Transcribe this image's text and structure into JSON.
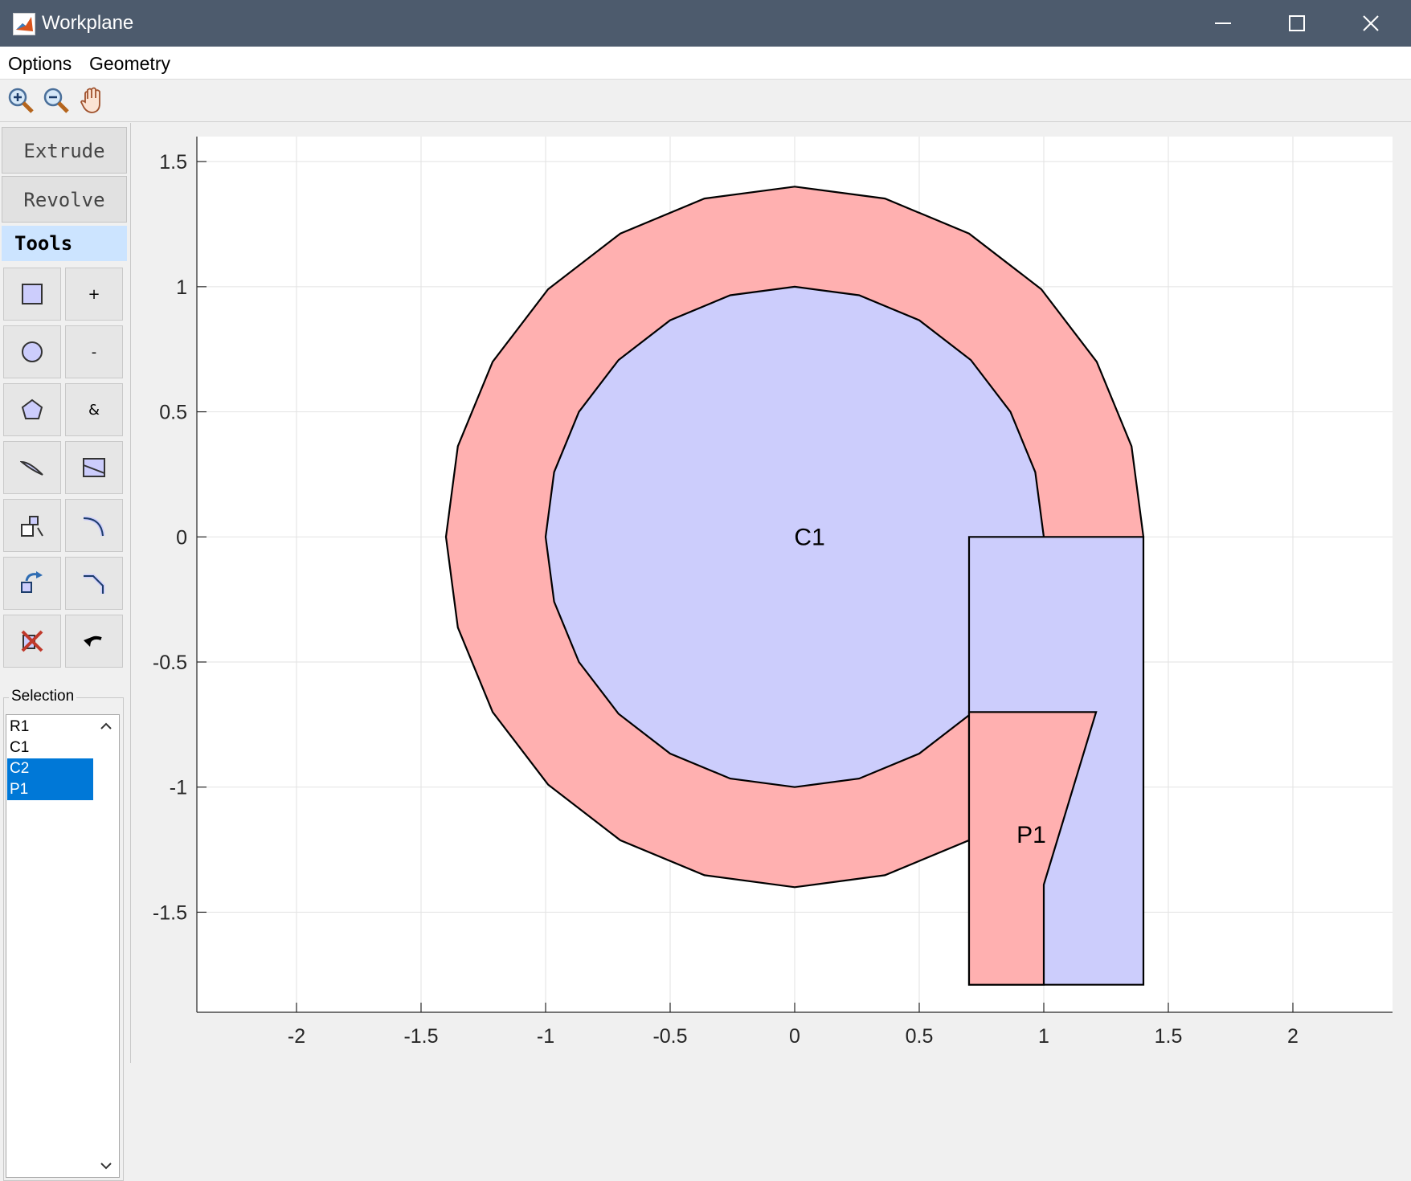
{
  "window": {
    "title": "Workplane"
  },
  "menu": {
    "items": [
      "Options",
      "Geometry"
    ]
  },
  "toolbar": {
    "icons": [
      "zoom-in-icon",
      "zoom-out-icon",
      "pan-hand-icon"
    ]
  },
  "sidebar": {
    "extrude_label": "Extrude",
    "revolve_label": "Revolve",
    "tools_label": "Tools",
    "tool_buttons": {
      "union": "+",
      "difference": "-",
      "intersection": "&"
    },
    "selection": {
      "label": "Selection",
      "items": [
        {
          "label": "R1",
          "selected": false
        },
        {
          "label": "C1",
          "selected": false
        },
        {
          "label": "C2",
          "selected": true
        },
        {
          "label": "P1",
          "selected": true
        }
      ]
    }
  },
  "chart_data": {
    "type": "geometry-plot",
    "xlim": [
      -2.4,
      2.4
    ],
    "ylim": [
      -1.9,
      1.6
    ],
    "x_ticks": [
      -2,
      -1.5,
      -1,
      -0.5,
      0,
      0.5,
      1,
      1.5,
      2
    ],
    "y_ticks": [
      1.5,
      1,
      0.5,
      0,
      -0.5,
      -1,
      -1.5
    ],
    "x_tick_labels": [
      "-2",
      "-1.5",
      "-1",
      "-0.5",
      "0",
      "0.5",
      "1",
      "1.5",
      "2"
    ],
    "y_tick_labels": [
      "1.5",
      "1",
      "0.5",
      "0",
      "-0.5",
      "-1",
      "-1.5"
    ],
    "grid": true,
    "colors": {
      "selected_fill": "#ffb0b0",
      "unselected_fill": "#cccdfc",
      "edge": "#000000"
    },
    "shapes": [
      {
        "name": "C2",
        "kind": "circle",
        "center": [
          0,
          0
        ],
        "radius": 1.4,
        "segments": 24,
        "selected": true
      },
      {
        "name": "C1",
        "kind": "circle",
        "center": [
          0,
          0
        ],
        "radius": 1.0,
        "segments": 24,
        "selected": false
      },
      {
        "name": "R1",
        "kind": "rectangle",
        "x": [
          0.7,
          1.4
        ],
        "y": [
          -1.79,
          0
        ],
        "selected": false
      },
      {
        "name": "P1",
        "kind": "polygon",
        "points": [
          [
            0.7,
            -0.7
          ],
          [
            1.21,
            -0.7
          ],
          [
            1.0,
            -1.39
          ],
          [
            1.0,
            -1.79
          ],
          [
            0.7,
            -1.79
          ]
        ],
        "selected": true
      }
    ],
    "labels": [
      {
        "text": "C1",
        "x": 0.06,
        "y": 0
      },
      {
        "text": "P1",
        "x": 0.95,
        "y": -1.19
      }
    ]
  }
}
